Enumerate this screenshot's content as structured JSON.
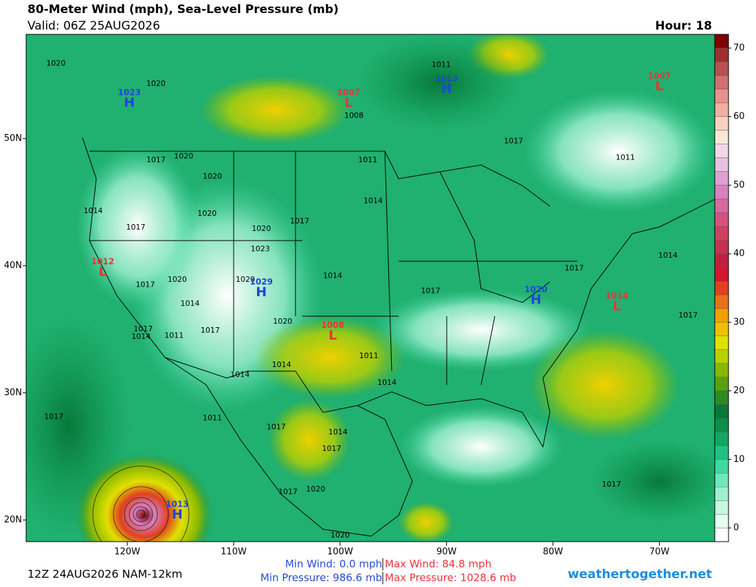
{
  "header": {
    "title": "80-Meter Wind (mph), Sea-Level Pressure (mb)",
    "valid": "Valid: 06Z 25AUG2026",
    "hour": "Hour: 18"
  },
  "map": {
    "xlim": [
      -129.5,
      -64.8
    ],
    "ylim": [
      18.3,
      58.2
    ],
    "xticks": [
      {
        "value": -120,
        "label": "120W"
      },
      {
        "value": -110,
        "label": "110W"
      },
      {
        "value": -100,
        "label": "100W"
      },
      {
        "value": -90,
        "label": "90W"
      },
      {
        "value": -80,
        "label": "80W"
      },
      {
        "value": -70,
        "label": "70W"
      }
    ],
    "yticks": [
      {
        "value": 20,
        "label": "20N"
      },
      {
        "value": 30,
        "label": "30N"
      },
      {
        "value": 40,
        "label": "40N"
      },
      {
        "value": 50,
        "label": "50N"
      }
    ],
    "center_colors": {
      "H": "#1f45e0",
      "L": "#e8343a"
    },
    "pressure_centers": [
      {
        "type": "H",
        "value": 1023,
        "lon": -119.8,
        "lat": 52.8
      },
      {
        "type": "L",
        "value": 1007,
        "lon": -99.2,
        "lat": 52.8
      },
      {
        "type": "H",
        "value": 1013,
        "lon": -90.0,
        "lat": 53.9
      },
      {
        "type": "L",
        "value": 1007,
        "lon": -70.0,
        "lat": 54.1
      },
      {
        "type": "L",
        "value": 1012,
        "lon": -122.3,
        "lat": 39.5
      },
      {
        "type": "H",
        "value": 1029,
        "lon": -107.4,
        "lat": 37.9
      },
      {
        "type": "H",
        "value": 1020,
        "lon": -81.6,
        "lat": 37.3
      },
      {
        "type": "L",
        "value": 1014,
        "lon": -74.0,
        "lat": 36.8
      },
      {
        "type": "L",
        "value": 1008,
        "lon": -100.7,
        "lat": 34.5
      },
      {
        "type": "H",
        "value": 1013,
        "lon": -115.3,
        "lat": 20.4
      }
    ],
    "isobar_labels": [
      {
        "value": 1020,
        "lon": -126.7,
        "lat": 55.9
      },
      {
        "value": 1020,
        "lon": -117.3,
        "lat": 54.3
      },
      {
        "value": 1011,
        "lon": -90.5,
        "lat": 55.8
      },
      {
        "value": 1008,
        "lon": -98.7,
        "lat": 51.8
      },
      {
        "value": 1017,
        "lon": -83.7,
        "lat": 49.8
      },
      {
        "value": 1017,
        "lon": -117.3,
        "lat": 48.3
      },
      {
        "value": 1020,
        "lon": -114.7,
        "lat": 48.6
      },
      {
        "value": 1011,
        "lon": -73.2,
        "lat": 48.5
      },
      {
        "value": 1020,
        "lon": -112.0,
        "lat": 47.0
      },
      {
        "value": 1011,
        "lon": -97.4,
        "lat": 48.3
      },
      {
        "value": 1014,
        "lon": -96.9,
        "lat": 45.1
      },
      {
        "value": 1014,
        "lon": -123.2,
        "lat": 44.3
      },
      {
        "value": 1020,
        "lon": -112.5,
        "lat": 44.1
      },
      {
        "value": 1017,
        "lon": -119.2,
        "lat": 43.0
      },
      {
        "value": 1020,
        "lon": -107.4,
        "lat": 42.9
      },
      {
        "value": 1017,
        "lon": -103.8,
        "lat": 43.5
      },
      {
        "value": 1023,
        "lon": -107.5,
        "lat": 41.3
      },
      {
        "value": 1014,
        "lon": -100.7,
        "lat": 39.2
      },
      {
        "value": 1017,
        "lon": -78.0,
        "lat": 39.8
      },
      {
        "value": 1014,
        "lon": -69.2,
        "lat": 40.8
      },
      {
        "value": 1017,
        "lon": -118.3,
        "lat": 38.5
      },
      {
        "value": 1020,
        "lon": -115.3,
        "lat": 38.9
      },
      {
        "value": 1020,
        "lon": -108.9,
        "lat": 38.9
      },
      {
        "value": 1017,
        "lon": -91.5,
        "lat": 38.0
      },
      {
        "value": 1014,
        "lon": -114.1,
        "lat": 37.0
      },
      {
        "value": 1020,
        "lon": -105.4,
        "lat": 35.6
      },
      {
        "value": 1017,
        "lon": -118.5,
        "lat": 35.0
      },
      {
        "value": 1014,
        "lon": -118.7,
        "lat": 34.4
      },
      {
        "value": 1011,
        "lon": -115.6,
        "lat": 34.5
      },
      {
        "value": 1017,
        "lon": -112.2,
        "lat": 34.9
      },
      {
        "value": 1011,
        "lon": -97.3,
        "lat": 32.9
      },
      {
        "value": 1017,
        "lon": -67.3,
        "lat": 36.1
      },
      {
        "value": 1014,
        "lon": -105.5,
        "lat": 32.2
      },
      {
        "value": 1014,
        "lon": -109.4,
        "lat": 31.4
      },
      {
        "value": 1014,
        "lon": -95.6,
        "lat": 30.8
      },
      {
        "value": 1017,
        "lon": -126.9,
        "lat": 28.1
      },
      {
        "value": 1011,
        "lon": -112.0,
        "lat": 28.0
      },
      {
        "value": 1017,
        "lon": -106.0,
        "lat": 27.3
      },
      {
        "value": 1014,
        "lon": -100.2,
        "lat": 26.9
      },
      {
        "value": 1017,
        "lon": -100.8,
        "lat": 25.6
      },
      {
        "value": 1017,
        "lon": -74.5,
        "lat": 22.8
      },
      {
        "value": 1017,
        "lon": -104.9,
        "lat": 22.2
      },
      {
        "value": 1020,
        "lon": -102.3,
        "lat": 22.4
      },
      {
        "value": 1020,
        "lon": -100.0,
        "lat": 18.8
      }
    ]
  },
  "colorbar": {
    "lim": [
      -2,
      72
    ],
    "ticks": [
      0,
      10,
      20,
      30,
      40,
      50,
      60,
      70
    ],
    "colors": [
      "#ffffff",
      "#e6fff2",
      "#c8f7e0",
      "#a0f0d0",
      "#70e8bc",
      "#40d8a0",
      "#20c080",
      "#10a860",
      "#0a9048",
      "#087838",
      "#2e8b22",
      "#5aa010",
      "#88b800",
      "#b8d000",
      "#e0e000",
      "#f0c000",
      "#f0a000",
      "#e87018",
      "#e04020",
      "#d01830",
      "#c02040",
      "#c83050",
      "#d04060",
      "#d85080",
      "#d868a0",
      "#d880c0",
      "#e0a0d0",
      "#e8c0e0",
      "#f0d8e8",
      "#f8e8d8",
      "#f8d0c0",
      "#f0b0a0",
      "#e89090",
      "#d07070",
      "#b85050",
      "#a03030",
      "#800000"
    ]
  },
  "footer": {
    "run": "12Z 24AUG2026 NAM-12km",
    "min_wind": "Min Wind:  0.0 mph",
    "max_wind": "Max Wind:  84.8 mph",
    "min_pressure": "Min Pressure: 986.6 mb",
    "max_pressure": "Max Pressure: 1028.6 mb",
    "site": "weathertogether.net"
  }
}
